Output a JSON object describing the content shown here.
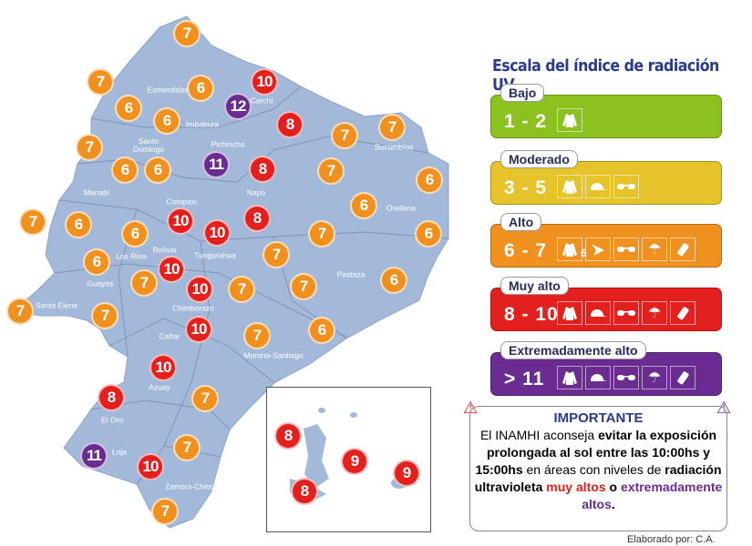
{
  "legend": {
    "title": "Escala del índice de radiación UV",
    "categories": [
      {
        "label": "Bajo",
        "range": "1 - 2",
        "color": "#8cc21f",
        "icons": [
          "shirt-icon"
        ]
      },
      {
        "label": "Moderado",
        "range": "3 - 5",
        "color": "#e6c22b",
        "icons": [
          "shirt-icon",
          "cap-icon",
          "sunglasses-icon"
        ]
      },
      {
        "label": "Alto",
        "range": "6 - 7",
        "color": "#f0901e",
        "icons": [
          "shirt-icon",
          "hat-icon",
          "sunglasses-icon",
          "umbrella-icon",
          "sunscreen-icon"
        ],
        "extra": "6"
      },
      {
        "label": "Muy alto",
        "range": "8 - 10",
        "color": "#e3201e",
        "icons": [
          "shirt-icon",
          "cap-icon",
          "sunglasses-icon",
          "umbrella-icon",
          "sunscreen-icon"
        ]
      },
      {
        "label": "Extremadamente alto",
        "range": "> 11",
        "color": "#6a2c91",
        "icons": [
          "shirt-icon",
          "cap-icon",
          "sunglasses-icon",
          "umbrella-icon",
          "sunscreen-icon"
        ]
      }
    ]
  },
  "important": {
    "heading": "IMPORTANTE",
    "t1": "El INAMHI aconseja ",
    "b1": "evitar la exposición prolongada al sol entre las 10:00hs y 15:00hs",
    "t2": " en áreas con niveles de ",
    "b2": "radiación ultravioleta ",
    "red": "muy altos",
    "t3": " o ",
    "purple": "extremadamente altos",
    "t4": "."
  },
  "footer": "Elaborado por: C.A.",
  "colors": {
    "map": "#a3b9d9",
    "orange": "#f0901e",
    "red": "#e3201e",
    "purple": "#6a2c91"
  },
  "provinces": [
    "Esmeraldas",
    "Carchi",
    "Imbabura",
    "Santo Domingo",
    "Pichincha",
    "Manabí",
    "Sucumbíos",
    "Napo",
    "Cotopaxi",
    "Orellana",
    "Bolívar",
    "Tungurahua",
    "Los Ríos",
    "Pastaza",
    "Guayas",
    "Santa Elena",
    "Chimborazo",
    "Cañar",
    "Morona-Santiago",
    "Azuay",
    "El Oro",
    "Loja",
    "Zamora-Chinchipe"
  ],
  "uv_values": [
    7,
    7,
    6,
    10,
    12,
    6,
    6,
    8,
    7,
    7,
    7,
    6,
    6,
    11,
    8,
    7,
    6,
    6,
    7,
    6,
    6,
    10,
    10,
    8,
    7,
    6,
    6,
    10,
    7,
    7,
    10,
    7,
    7,
    6,
    7,
    7,
    10,
    7,
    6,
    10,
    8,
    7,
    7,
    11,
    10,
    7
  ],
  "galapagos_values": [
    8,
    9,
    9,
    8
  ]
}
